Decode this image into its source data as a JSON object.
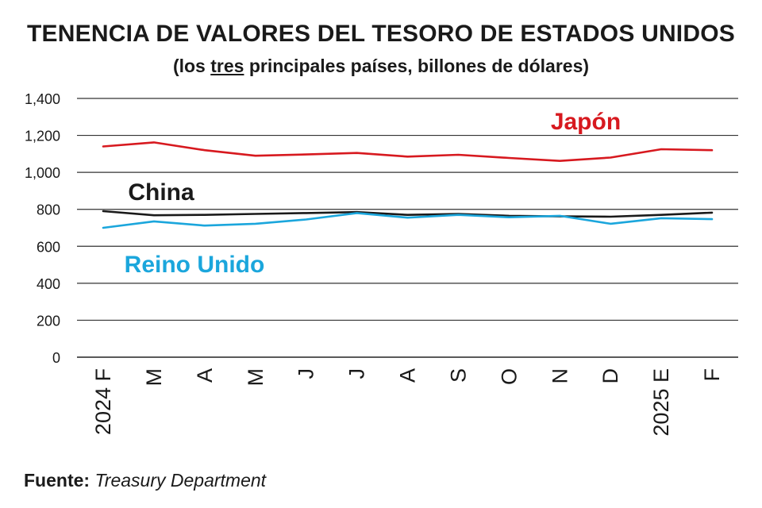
{
  "title": "TENENCIA DE VALORES DEL TESORO DE ESTADOS UNIDOS",
  "subtitle": {
    "before": "(los ",
    "underlined": "tres",
    "after": " principales países, billones de dólares)"
  },
  "source": {
    "label": "Fuente:",
    "text": "Treasury Department"
  },
  "chart_data": {
    "type": "line",
    "x": [
      "2024 F",
      "M",
      "A",
      "M",
      "J",
      "J",
      "A",
      "S",
      "O",
      "N",
      "D",
      "2025 E",
      "F"
    ],
    "ylim": [
      0,
      1400
    ],
    "yticks": [
      0,
      200,
      400,
      600,
      800,
      1000,
      1200,
      1400
    ],
    "ytick_labels": [
      "0",
      "200",
      "400",
      "600",
      "800",
      "1,000",
      "1,200",
      "1,400"
    ],
    "grid": true,
    "series": [
      {
        "name": "Japón",
        "color": "#d7191f",
        "values": [
          1140,
          1162,
          1120,
          1090,
          1097,
          1105,
          1085,
          1095,
          1078,
          1062,
          1080,
          1125,
          1120
        ]
      },
      {
        "name": "China",
        "color": "#1a1a1a",
        "values": [
          790,
          768,
          770,
          775,
          780,
          785,
          770,
          775,
          765,
          762,
          760,
          770,
          782
        ]
      },
      {
        "name": "Reino Unido",
        "color": "#1ba6dc",
        "values": [
          700,
          735,
          712,
          722,
          745,
          780,
          755,
          770,
          757,
          765,
          722,
          752,
          747
        ]
      }
    ]
  }
}
